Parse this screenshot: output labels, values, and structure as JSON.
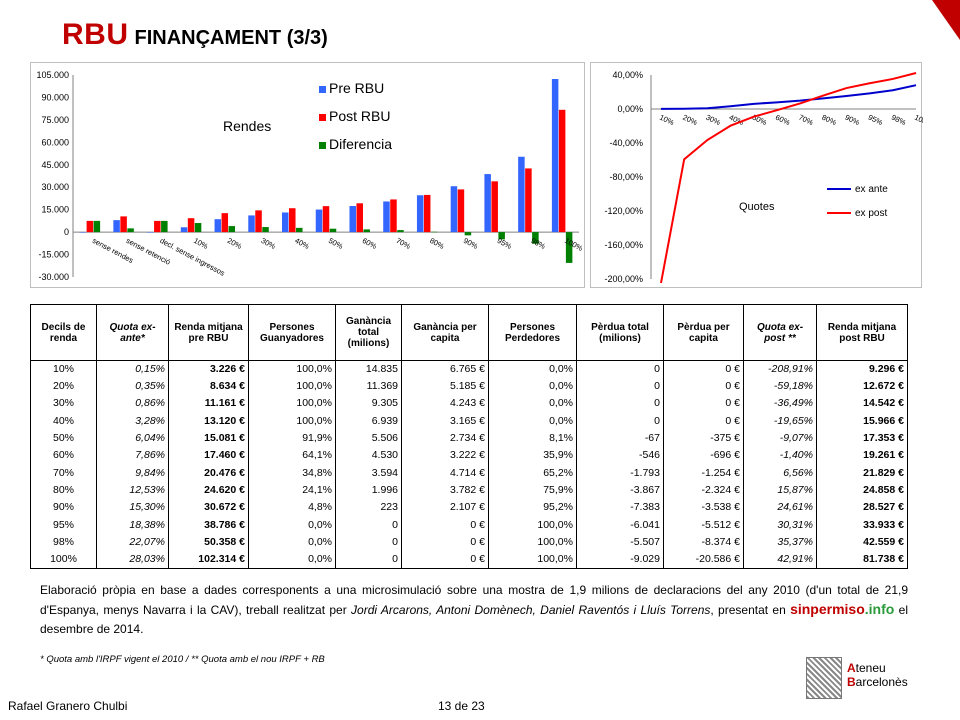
{
  "header": {
    "title_main": "RBU",
    "title_sub": "FINANÇAMENT (3/3)"
  },
  "chart_data": [
    {
      "type": "bar",
      "title": "Rendes",
      "categories": [
        "sense rendes",
        "sense retenció",
        "decl. sense ingressos",
        "10%",
        "20%",
        "30%",
        "40%",
        "50%",
        "60%",
        "70%",
        "80%",
        "90%",
        "95%",
        "98%",
        "100%"
      ],
      "ylim": [
        -30000,
        105000
      ],
      "yticks": [
        "105.000",
        "90.000",
        "75.000",
        "60.000",
        "45.000",
        "30.000",
        "15.000",
        "0",
        "-15.000",
        "-30.000"
      ],
      "series": [
        {
          "name": "Pre RBU",
          "color": "#3366ff",
          "values": [
            0,
            8000,
            0,
            3226,
            8634,
            11161,
            13120,
            15081,
            17460,
            20476,
            24620,
            30672,
            38786,
            50358,
            102314
          ]
        },
        {
          "name": "Post RBU",
          "color": "#ff0000",
          "values": [
            7500,
            10500,
            7500,
            9296,
            12672,
            14542,
            15966,
            17353,
            19261,
            21829,
            24858,
            28527,
            33933,
            42559,
            81738
          ]
        },
        {
          "name": "Diferencia",
          "color": "#008000",
          "values": [
            7500,
            2500,
            7500,
            6070,
            4038,
            3381,
            2846,
            2272,
            1801,
            1353,
            238,
            -2145,
            -4853,
            -7799,
            -20576
          ]
        }
      ]
    },
    {
      "type": "line",
      "title": "Quotes",
      "categories": [
        "10%",
        "20%",
        "30%",
        "40%",
        "50%",
        "60%",
        "70%",
        "80%",
        "90%",
        "95%",
        "98%",
        "100%"
      ],
      "ylim": [
        -200,
        40
      ],
      "yticks": [
        "40,00%",
        "0,00%",
        "-40,00%",
        "-80,00%",
        "-120,00%",
        "-160,00%",
        "-200,00%"
      ],
      "series": [
        {
          "name": "ex ante",
          "color": "#0000cc",
          "values": [
            0.15,
            0.35,
            0.86,
            3.28,
            6.04,
            7.86,
            9.84,
            12.53,
            15.3,
            18.38,
            22.07,
            28.03
          ]
        },
        {
          "name": "ex post",
          "color": "#ff0000",
          "values": [
            -208.91,
            -59.18,
            -36.49,
            -19.65,
            -9.07,
            -1.4,
            6.56,
            15.87,
            24.61,
            30.31,
            35.37,
            42.91
          ]
        }
      ]
    }
  ],
  "table": {
    "headers": [
      "Decils de renda",
      "Quota ex-ante*",
      "Renda mitjana pre RBU",
      "Persones Guanyadores",
      "Ganància total (milions)",
      "Ganància per capita",
      "Persones Perdedores",
      "Pèrdua total (milions)",
      "Pèrdua per capita",
      "Quota ex-post **",
      "Renda mitjana post RBU"
    ],
    "rows": [
      [
        "10%",
        "0,15%",
        "3.226 €",
        "100,0%",
        "14.835",
        "6.765 €",
        "0,0%",
        "0",
        "0 €",
        "-208,91%",
        "9.296 €"
      ],
      [
        "20%",
        "0,35%",
        "8.634 €",
        "100,0%",
        "11.369",
        "5.185 €",
        "0,0%",
        "0",
        "0 €",
        "-59,18%",
        "12.672 €"
      ],
      [
        "30%",
        "0,86%",
        "11.161 €",
        "100,0%",
        "9.305",
        "4.243 €",
        "0,0%",
        "0",
        "0 €",
        "-36,49%",
        "14.542 €"
      ],
      [
        "40%",
        "3,28%",
        "13.120 €",
        "100,0%",
        "6.939",
        "3.165 €",
        "0,0%",
        "0",
        "0 €",
        "-19,65%",
        "15.966 €"
      ],
      [
        "50%",
        "6,04%",
        "15.081 €",
        "91,9%",
        "5.506",
        "2.734 €",
        "8,1%",
        "-67",
        "-375 €",
        "-9,07%",
        "17.353 €"
      ],
      [
        "60%",
        "7,86%",
        "17.460 €",
        "64,1%",
        "4.530",
        "3.222 €",
        "35,9%",
        "-546",
        "-696 €",
        "-1,40%",
        "19.261 €"
      ],
      [
        "70%",
        "9,84%",
        "20.476 €",
        "34,8%",
        "3.594",
        "4.714 €",
        "65,2%",
        "-1.793",
        "-1.254 €",
        "6,56%",
        "21.829 €"
      ],
      [
        "80%",
        "12,53%",
        "24.620 €",
        "24,1%",
        "1.996",
        "3.782 €",
        "75,9%",
        "-3.867",
        "-2.324 €",
        "15,87%",
        "24.858 €"
      ],
      [
        "90%",
        "15,30%",
        "30.672 €",
        "4,8%",
        "223",
        "2.107 €",
        "95,2%",
        "-7.383",
        "-3.538 €",
        "24,61%",
        "28.527 €"
      ],
      [
        "95%",
        "18,38%",
        "38.786 €",
        "0,0%",
        "0",
        "0 €",
        "100,0%",
        "-6.041",
        "-5.512 €",
        "30,31%",
        "33.933 €"
      ],
      [
        "98%",
        "22,07%",
        "50.358 €",
        "0,0%",
        "0",
        "0 €",
        "100,0%",
        "-5.507",
        "-8.374 €",
        "35,37%",
        "42.559 €"
      ],
      [
        "100%",
        "28,03%",
        "102.314 €",
        "0,0%",
        "0",
        "0 €",
        "100,0%",
        "-9.029",
        "-20.586 €",
        "42,91%",
        "81.738 €"
      ]
    ]
  },
  "note": {
    "part1": "Elaboració pròpia en base a dades corresponents a una microsimulació sobre una mostra de 1,9 milions de declaracions del any 2010 (d'un total de 21,9 d'Espanya, menys Navarra i la CAV), treball realitzat per ",
    "authors": "Jordi Arcarons, Antoni Domènech, Daniel Raventós i Lluís Torrens",
    "part2": ", presentat en ",
    "brand_a": "sinpermiso",
    "brand_b": ".info",
    "part3": " el desembre de 2014."
  },
  "footnote": "* Quota amb l'IRPF vigent el 2010  /  ** Quota amb el nou IRPF + RB",
  "footer": {
    "author": "Rafael  Granero Chulbi",
    "page": "13 de 23"
  },
  "logo": {
    "line1_a": "A",
    "line1_b": "teneu",
    "line2_a": "B",
    "line2_b": "arcelonès"
  }
}
